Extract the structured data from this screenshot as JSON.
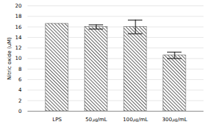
{
  "chart_data": {
    "type": "bar",
    "y_label": "Nitric oxide (uM)",
    "categories": [
      "LPS",
      "50㎍/mL",
      "100㎍/mL",
      "300㎍/mL"
    ],
    "values": [
      16.6,
      16.0,
      16.0,
      10.6
    ],
    "errors": [
      0,
      0.4,
      1.3,
      0.6
    ],
    "color": "#595959",
    "ylim": [
      0,
      20
    ],
    "yticks": [
      0,
      2,
      4,
      6,
      8,
      10,
      12,
      14,
      16,
      18,
      20
    ],
    "grid": true
  }
}
